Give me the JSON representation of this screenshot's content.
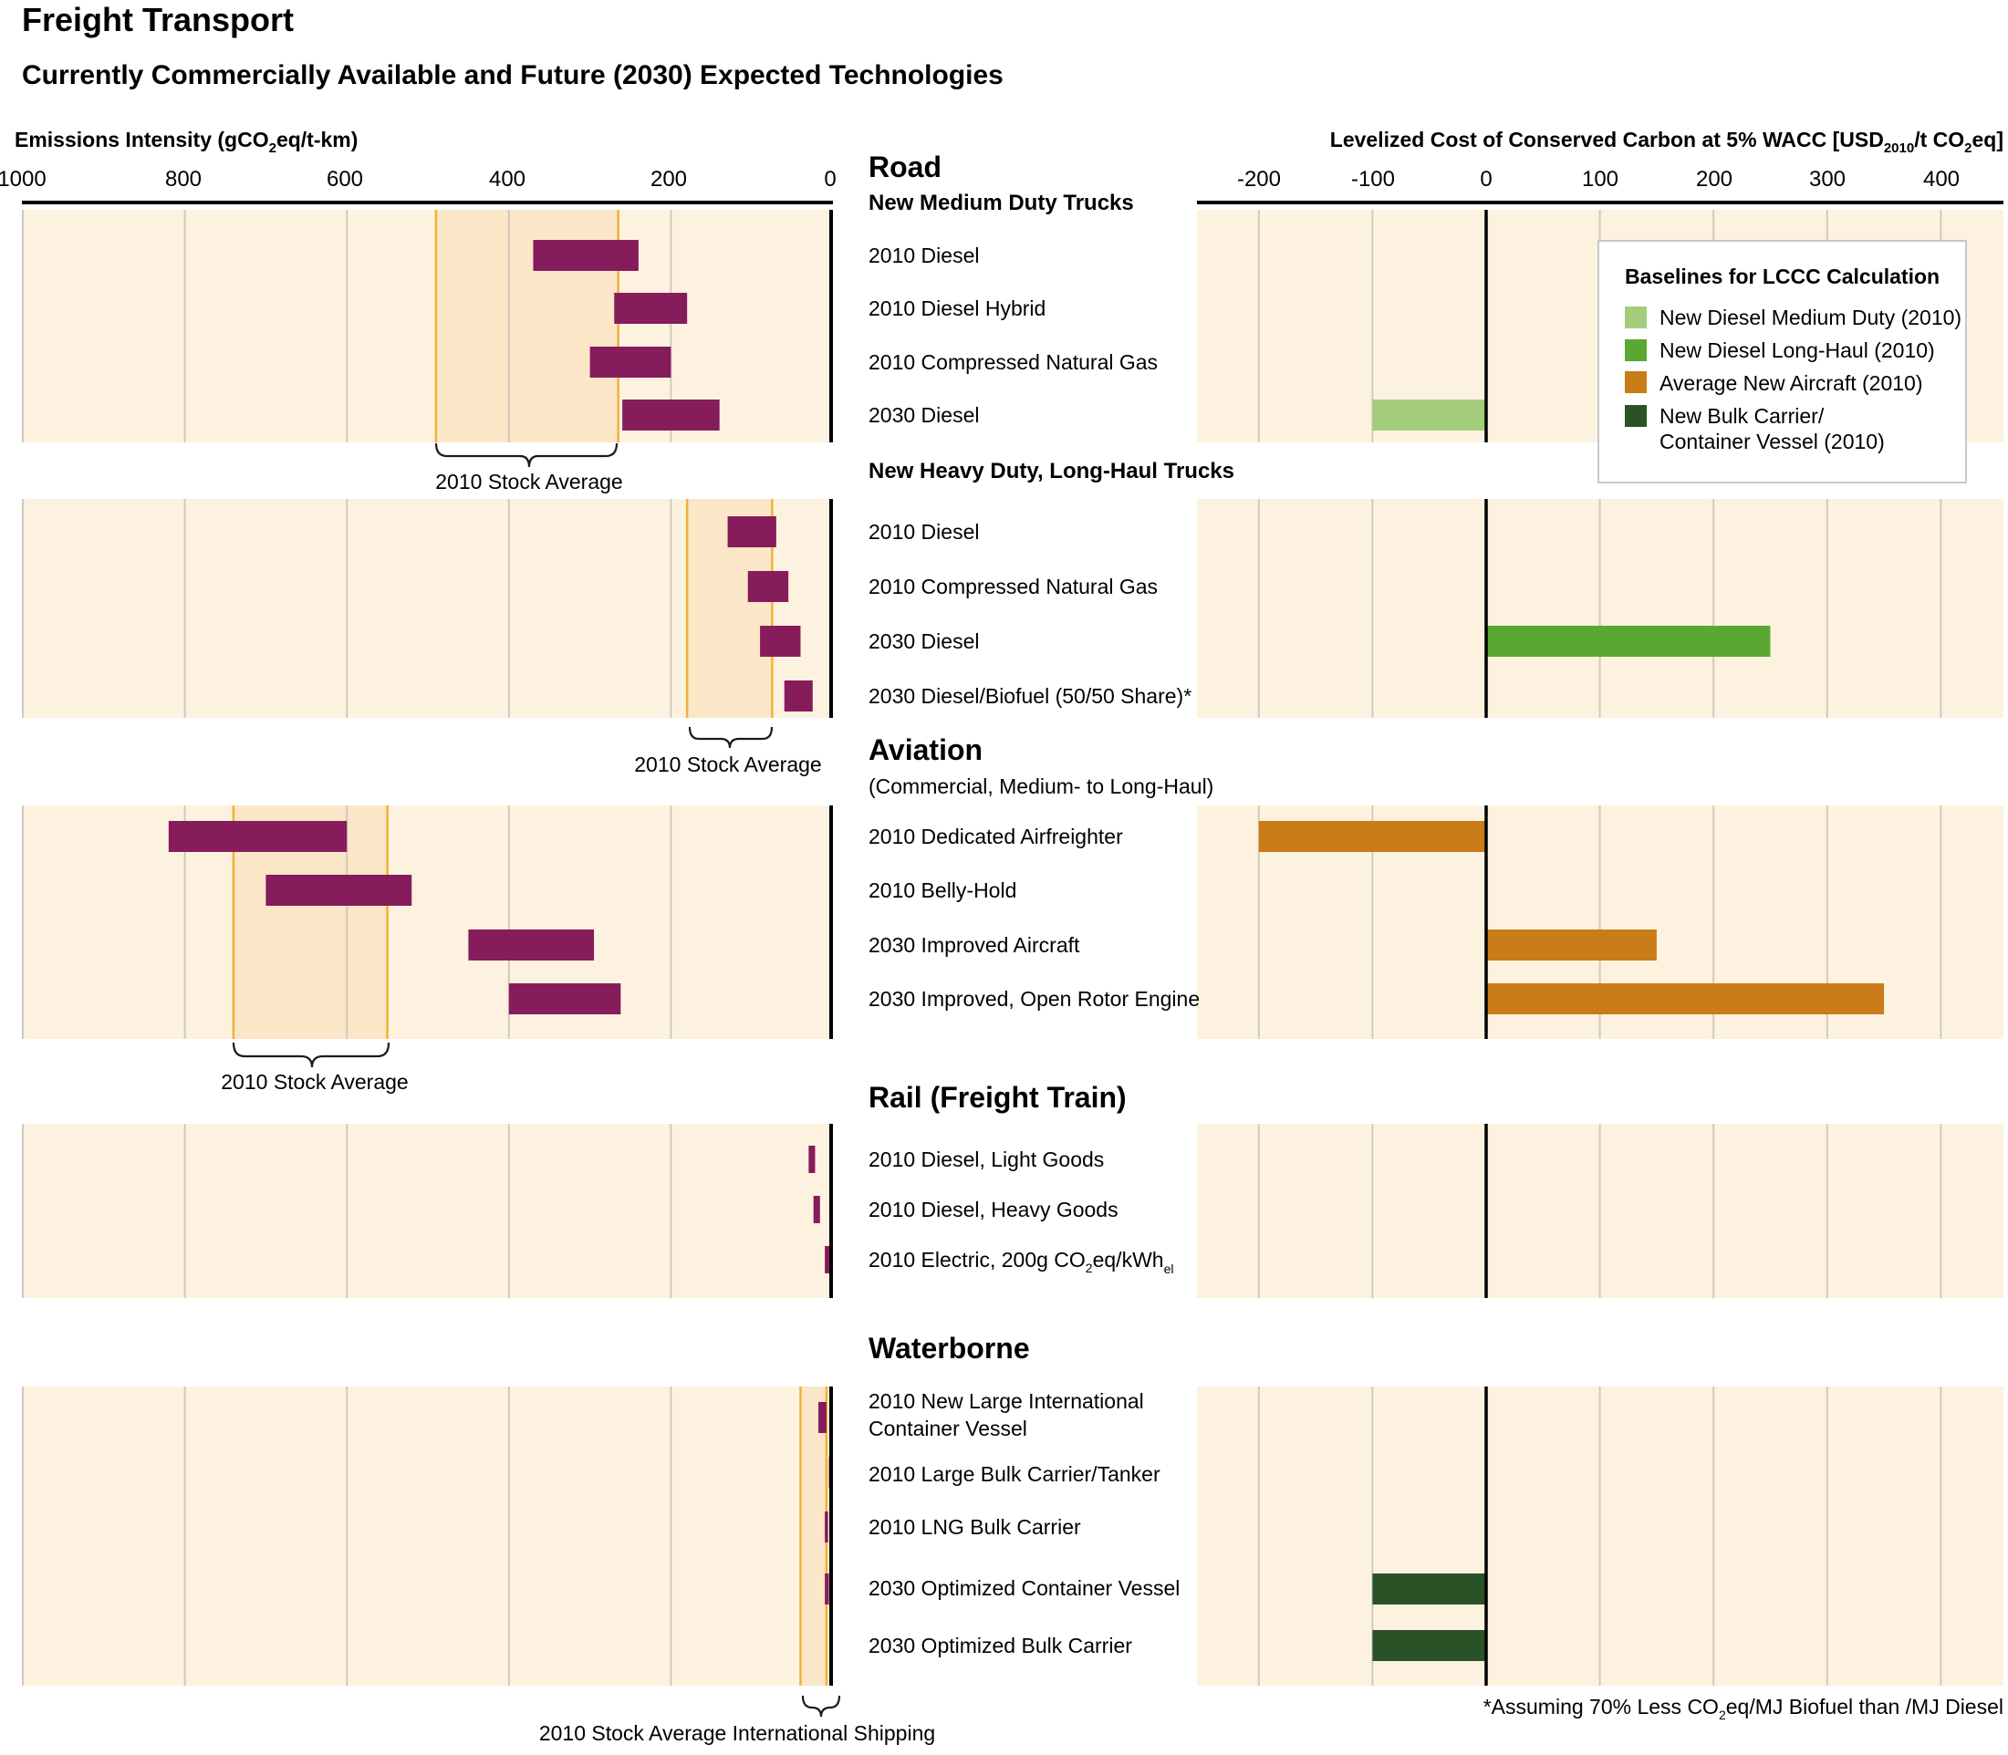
{
  "title": "Freight Transport",
  "subtitle": "Currently Commercially Available and Future (2030) Expected Technologies",
  "colors": {
    "panel_bg": "#fdf2df",
    "stock_band": "#fbe6c8",
    "stock_line": "#f2b233",
    "emission_bar": "#861c5c",
    "grid": "#cfc9bf",
    "medium_duty": "#a3cd7a",
    "long_haul": "#5ba733",
    "aircraft": "#c97c17",
    "bulk_carrier": "#2a5227"
  },
  "left_axis": {
    "label_pre": "Emissions Intensity (gCO",
    "label_sub": "2",
    "label_post": "eq/t-km)",
    "ticks": [
      "1000",
      "800",
      "600",
      "400",
      "200",
      "0"
    ]
  },
  "right_axis": {
    "label_pre": "Levelized Cost of Conserved Carbon at 5% WACC [USD",
    "label_sub1": "2010",
    "label_mid": "/t CO",
    "label_sub2": "2",
    "label_post": "eq]",
    "ticks": [
      "-200",
      "-100",
      "0",
      "100",
      "200",
      "300",
      "400"
    ]
  },
  "legend": {
    "title": "Baselines for LCCC Calculation",
    "items": [
      {
        "label": "New Diesel Medium Duty (2010)",
        "color": "#a3cd7a"
      },
      {
        "label": "New Diesel Long-Haul (2010)",
        "color": "#5ba733"
      },
      {
        "label": "Average New Aircraft (2010)",
        "color": "#c97c17"
      },
      {
        "label": "New Bulk Carrier/",
        "label2": "Container Vessel (2010)",
        "color": "#2a5227"
      }
    ]
  },
  "section_headers": {
    "road": "Road",
    "medium_duty": "New Medium Duty Trucks",
    "heavy_duty": "New Heavy Duty, Long-Haul Trucks",
    "aviation": "Aviation",
    "aviation_sub": "(Commercial, Medium- to Long-Haul)",
    "rail": "Rail (Freight Train)",
    "waterborne": "Waterborne"
  },
  "stock_average_labels": {
    "road": "2010 Stock Average",
    "heavy": "2010 Stock Average",
    "aviation": "2010 Stock Average",
    "shipping": "2010 Stock Average International Shipping"
  },
  "footnote_pre": "*Assuming 70% Less CO",
  "footnote_sub": "2",
  "footnote_post": "eq/MJ Biofuel than /MJ Diesel",
  "chart_data": {
    "type": "bar",
    "title": "Freight Transport",
    "subtitle": "Currently Commercially Available and Future (2030) Expected Technologies",
    "emissions_axis": {
      "xlabel": "Emissions Intensity (gCO2eq/t-km)",
      "xlim": [
        1000,
        0
      ],
      "reversed": true
    },
    "lccc_axis": {
      "xlabel": "Levelized Cost of Conserved Carbon at 5% WACC [USD2010/t CO2eq]",
      "xlim": [
        -240,
        460
      ]
    },
    "groups": [
      {
        "key": "medium_duty",
        "stock_average": [
          490,
          265
        ],
        "rows": [
          {
            "label": "2010 Diesel",
            "emissions": [
              370,
              240
            ]
          },
          {
            "label": "2010 Diesel Hybrid",
            "emissions": [
              270,
              180
            ]
          },
          {
            "label": "2010 Compressed Natural Gas",
            "emissions": [
              300,
              200
            ]
          },
          {
            "label": "2030 Diesel",
            "emissions": [
              260,
              140
            ],
            "lccc": [
              -100,
              0
            ],
            "lccc_baseline": "New Diesel Medium Duty (2010)"
          }
        ]
      },
      {
        "key": "heavy_duty",
        "stock_average": [
          180,
          75
        ],
        "rows": [
          {
            "label": "2010 Diesel",
            "emissions": [
              130,
              70
            ]
          },
          {
            "label": "2010 Compressed Natural Gas",
            "emissions": [
              105,
              55
            ]
          },
          {
            "label": "2030 Diesel",
            "emissions": [
              90,
              40
            ],
            "lccc": [
              0,
              250
            ],
            "lccc_baseline": "New Diesel Long-Haul (2010)"
          },
          {
            "label": "2030 Diesel/Biofuel  (50/50 Share)*",
            "emissions": [
              60,
              25
            ]
          }
        ]
      },
      {
        "key": "aviation",
        "stock_average": [
          740,
          550
        ],
        "rows": [
          {
            "label": "2010 Dedicated Airfreighter",
            "emissions": [
              820,
              600
            ],
            "lccc": [
              -200,
              0
            ],
            "lccc_baseline": "Average New Aircraft (2010)"
          },
          {
            "label": "2010 Belly-Hold",
            "emissions": [
              700,
              520
            ]
          },
          {
            "label": "2030 Improved Aircraft",
            "emissions": [
              450,
              295
            ],
            "lccc": [
              0,
              150
            ],
            "lccc_baseline": "Average New Aircraft (2010)"
          },
          {
            "label": "2030 Improved, Open Rotor Engine",
            "emissions": [
              400,
              262
            ],
            "lccc": [
              0,
              350
            ],
            "lccc_baseline": "Average New Aircraft (2010)"
          }
        ]
      },
      {
        "key": "rail",
        "stock_average": null,
        "rows": [
          {
            "label": "2010 Diesel, Light Goods",
            "emissions": [
              30,
              22
            ]
          },
          {
            "label": "2010 Diesel, Heavy Goods",
            "emissions": [
              24,
              16
            ]
          },
          {
            "label_pre": "2010 Electric, 200g CO",
            "label_sub": "2",
            "label_mid": "eq/kWh",
            "label_sub2": "el",
            "emissions": [
              10,
              4
            ]
          }
        ]
      },
      {
        "key": "waterborne",
        "stock_average": [
          40,
          8
        ],
        "rows": [
          {
            "label": "2010 New Large International",
            "label2": "Container Vessel",
            "emissions": [
              18,
              8
            ]
          },
          {
            "label": "2010 Large Bulk Carrier/Tanker",
            "emissions": [
              5,
              1
            ]
          },
          {
            "label": "2010 LNG Bulk Carrier",
            "emissions": [
              10,
              6
            ]
          },
          {
            "label": "2030 Optimized Container Vessel",
            "emissions": [
              10,
              5
            ],
            "lccc": [
              -100,
              0
            ],
            "lccc_baseline": "New Bulk Carrier/Container Vessel (2010)"
          },
          {
            "label": "2030 Optimized Bulk Carrier",
            "emissions": [
              4,
              1
            ],
            "lccc": [
              -100,
              0
            ],
            "lccc_baseline": "New Bulk Carrier/Container Vessel (2010)"
          }
        ]
      }
    ]
  }
}
